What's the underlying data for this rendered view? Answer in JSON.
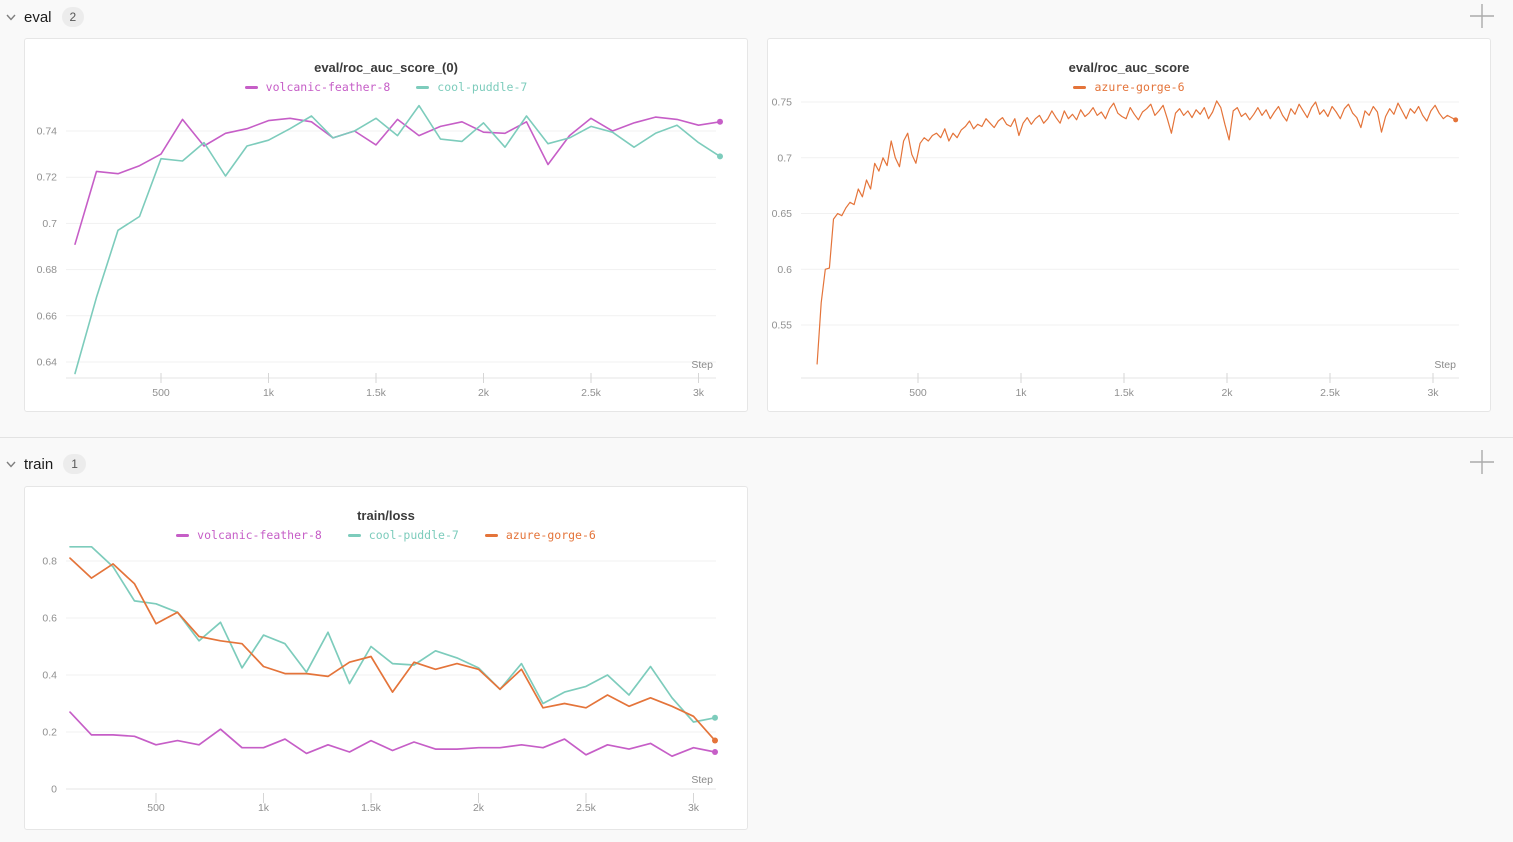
{
  "page": {
    "background": "#f9f9f9"
  },
  "icons": {
    "chevron": "chevron-down-icon",
    "plus": "plus-icon"
  },
  "sections": [
    {
      "name": "eval",
      "count": "2"
    },
    {
      "name": "train",
      "count": "1"
    }
  ],
  "colors": {
    "volcanic_feather_8": "#c65ec7",
    "cool_puddle_7": "#7dccbc",
    "azure_gorge_6": "#e4743a",
    "grid": "#f1f1f1",
    "axis": "#e4e4e4",
    "tick": "#d6d6d6",
    "tick_label": "#909090"
  },
  "chart_data": [
    {
      "id": "eval-roc-auc-score-0",
      "type": "line",
      "title": "eval/roc_auc_score_(0)",
      "xlabel": "Step",
      "legend_position": "top-center",
      "grid": true,
      "xlim": [
        0,
        3200
      ],
      "ylim": [
        0.632,
        0.751
      ],
      "x_tick_values": [
        500,
        1000,
        1500,
        2000,
        2500,
        3000
      ],
      "x_tick_labels": [
        "500",
        "1k",
        "1.5k",
        "2k",
        "2.5k",
        "3k"
      ],
      "y_tick_values": [
        0.64,
        0.66,
        0.68,
        0.7,
        0.72,
        0.74
      ],
      "y_tick_labels": [
        "0.64",
        "0.66",
        "0.68",
        "0.7",
        "0.72",
        "0.74"
      ],
      "x": [
        100,
        200,
        300,
        400,
        500,
        600,
        700,
        800,
        900,
        1000,
        1100,
        1200,
        1300,
        1400,
        1500,
        1600,
        1700,
        1800,
        1900,
        2000,
        2100,
        2200,
        2300,
        2400,
        2500,
        2600,
        2700,
        2800,
        2900,
        3000,
        3100
      ],
      "series": [
        {
          "name": "volcanic-feather-8",
          "color": "#c65ec7",
          "values": [
            0.691,
            0.7225,
            0.7215,
            0.725,
            0.73,
            0.745,
            0.7335,
            0.739,
            0.741,
            0.7445,
            0.7455,
            0.744,
            0.737,
            0.74,
            0.734,
            0.745,
            0.738,
            0.742,
            0.744,
            0.7395,
            0.739,
            0.744,
            0.7255,
            0.738,
            0.7455,
            0.74,
            0.7435,
            0.746,
            0.745,
            0.7425,
            0.744
          ]
        },
        {
          "name": "cool-puddle-7",
          "color": "#7dccbc",
          "values": [
            0.635,
            0.668,
            0.697,
            0.703,
            0.728,
            0.727,
            0.735,
            0.7205,
            0.7335,
            0.736,
            0.741,
            0.7465,
            0.737,
            0.74,
            0.7455,
            0.738,
            0.751,
            0.7365,
            0.7355,
            0.7435,
            0.733,
            0.7465,
            0.7345,
            0.737,
            0.742,
            0.7395,
            0.733,
            0.739,
            0.7425,
            0.735,
            0.729
          ]
        }
      ]
    },
    {
      "id": "eval-roc-auc-score",
      "type": "line",
      "title": "eval/roc_auc_score",
      "xlabel": "Step",
      "legend_position": "top-center",
      "grid": true,
      "xlim": [
        0,
        3200
      ],
      "ylim": [
        0.5,
        0.76
      ],
      "x_tick_values": [
        500,
        1000,
        1500,
        2000,
        2500,
        3000
      ],
      "x_tick_labels": [
        "500",
        "1k",
        "1.5k",
        "2k",
        "2.5k",
        "3k"
      ],
      "y_tick_values": [
        0.55,
        0.6,
        0.65,
        0.7,
        0.75
      ],
      "y_tick_labels": [
        "0.55",
        "0.6",
        "0.65",
        "0.7",
        "0.75"
      ],
      "x": [
        10,
        30,
        50,
        70,
        90,
        110,
        130,
        150,
        170,
        190,
        210,
        230,
        250,
        270,
        290,
        310,
        330,
        350,
        370,
        390,
        410,
        430,
        450,
        470,
        490,
        510,
        530,
        550,
        570,
        590,
        610,
        630,
        650,
        670,
        690,
        710,
        730,
        750,
        770,
        790,
        810,
        830,
        850,
        870,
        890,
        910,
        930,
        950,
        970,
        990,
        1010,
        1030,
        1050,
        1070,
        1090,
        1110,
        1130,
        1150,
        1170,
        1190,
        1210,
        1230,
        1250,
        1270,
        1290,
        1310,
        1330,
        1350,
        1370,
        1390,
        1410,
        1430,
        1450,
        1470,
        1490,
        1510,
        1530,
        1550,
        1570,
        1590,
        1610,
        1630,
        1650,
        1670,
        1690,
        1710,
        1730,
        1750,
        1770,
        1790,
        1810,
        1830,
        1850,
        1870,
        1890,
        1910,
        1930,
        1950,
        1970,
        1990,
        2010,
        2030,
        2050,
        2070,
        2090,
        2110,
        2130,
        2150,
        2170,
        2190,
        2210,
        2230,
        2250,
        2270,
        2290,
        2310,
        2330,
        2350,
        2370,
        2390,
        2410,
        2430,
        2450,
        2470,
        2490,
        2510,
        2530,
        2550,
        2570,
        2590,
        2610,
        2630,
        2650,
        2670,
        2690,
        2710,
        2730,
        2750,
        2770,
        2790,
        2810,
        2830,
        2850,
        2870,
        2890,
        2910,
        2930,
        2950,
        2970,
        2990,
        3010,
        3030,
        3050,
        3070,
        3090,
        3110
      ],
      "series": [
        {
          "name": "azure-gorge-6",
          "color": "#e4743a",
          "values": [
            0.515,
            0.57,
            0.6,
            0.601,
            0.645,
            0.65,
            0.648,
            0.655,
            0.66,
            0.658,
            0.672,
            0.665,
            0.68,
            0.672,
            0.695,
            0.688,
            0.7,
            0.693,
            0.715,
            0.7,
            0.692,
            0.715,
            0.722,
            0.703,
            0.695,
            0.713,
            0.718,
            0.715,
            0.72,
            0.722,
            0.718,
            0.726,
            0.715,
            0.722,
            0.718,
            0.725,
            0.728,
            0.733,
            0.726,
            0.73,
            0.728,
            0.735,
            0.731,
            0.727,
            0.733,
            0.736,
            0.73,
            0.728,
            0.735,
            0.72,
            0.731,
            0.736,
            0.73,
            0.735,
            0.738,
            0.731,
            0.735,
            0.742,
            0.736,
            0.731,
            0.742,
            0.735,
            0.739,
            0.734,
            0.743,
            0.737,
            0.74,
            0.745,
            0.738,
            0.741,
            0.735,
            0.744,
            0.749,
            0.74,
            0.737,
            0.735,
            0.745,
            0.739,
            0.734,
            0.741,
            0.744,
            0.748,
            0.738,
            0.742,
            0.747,
            0.735,
            0.722,
            0.74,
            0.744,
            0.738,
            0.742,
            0.736,
            0.743,
            0.739,
            0.745,
            0.735,
            0.741,
            0.751,
            0.745,
            0.73,
            0.716,
            0.742,
            0.745,
            0.737,
            0.74,
            0.734,
            0.739,
            0.745,
            0.738,
            0.743,
            0.735,
            0.741,
            0.746,
            0.738,
            0.733,
            0.744,
            0.739,
            0.748,
            0.742,
            0.736,
            0.745,
            0.75,
            0.739,
            0.743,
            0.737,
            0.746,
            0.741,
            0.735,
            0.744,
            0.748,
            0.74,
            0.736,
            0.727,
            0.742,
            0.738,
            0.746,
            0.741,
            0.723,
            0.737,
            0.744,
            0.739,
            0.749,
            0.742,
            0.735,
            0.744,
            0.74,
            0.746,
            0.738,
            0.733,
            0.742,
            0.747,
            0.74,
            0.735,
            0.738,
            0.736,
            0.734
          ]
        }
      ]
    },
    {
      "id": "train-loss",
      "type": "line",
      "title": "train/loss",
      "xlabel": "Step",
      "legend_position": "top-center",
      "grid": true,
      "xlim": [
        0,
        3200
      ],
      "ylim": [
        0,
        0.88
      ],
      "x_tick_values": [
        500,
        1000,
        1500,
        2000,
        2500,
        3000
      ],
      "x_tick_labels": [
        "500",
        "1k",
        "1.5k",
        "2k",
        "2.5k",
        "3k"
      ],
      "y_tick_values": [
        0,
        0.2,
        0.4,
        0.6,
        0.8
      ],
      "y_tick_labels": [
        "0",
        "0.2",
        "0.4",
        "0.6",
        "0.8"
      ],
      "x": [
        100,
        200,
        300,
        400,
        500,
        600,
        700,
        800,
        900,
        1000,
        1100,
        1200,
        1300,
        1400,
        1500,
        1600,
        1700,
        1800,
        1900,
        2000,
        2100,
        2200,
        2300,
        2400,
        2500,
        2600,
        2700,
        2800,
        2900,
        3000,
        3100
      ],
      "series": [
        {
          "name": "volcanic-feather-8",
          "color": "#c65ec7",
          "values": [
            0.27,
            0.19,
            0.19,
            0.185,
            0.155,
            0.17,
            0.155,
            0.21,
            0.145,
            0.145,
            0.175,
            0.125,
            0.155,
            0.13,
            0.17,
            0.135,
            0.165,
            0.14,
            0.14,
            0.145,
            0.145,
            0.155,
            0.145,
            0.175,
            0.12,
            0.155,
            0.14,
            0.16,
            0.115,
            0.145,
            0.13
          ]
        },
        {
          "name": "cool-puddle-7",
          "color": "#7dccbc",
          "values": [
            0.85,
            0.85,
            0.78,
            0.66,
            0.65,
            0.62,
            0.52,
            0.585,
            0.425,
            0.54,
            0.51,
            0.41,
            0.55,
            0.37,
            0.5,
            0.44,
            0.435,
            0.485,
            0.46,
            0.425,
            0.35,
            0.44,
            0.3,
            0.34,
            0.36,
            0.4,
            0.33,
            0.43,
            0.32,
            0.235,
            0.25
          ]
        },
        {
          "name": "azure-gorge-6",
          "color": "#e4743a",
          "values": [
            0.81,
            0.74,
            0.79,
            0.72,
            0.58,
            0.62,
            0.535,
            0.52,
            0.51,
            0.43,
            0.405,
            0.405,
            0.395,
            0.445,
            0.465,
            0.34,
            0.445,
            0.42,
            0.44,
            0.42,
            0.35,
            0.42,
            0.285,
            0.3,
            0.285,
            0.33,
            0.29,
            0.32,
            0.29,
            0.255,
            0.17
          ]
        }
      ]
    }
  ]
}
